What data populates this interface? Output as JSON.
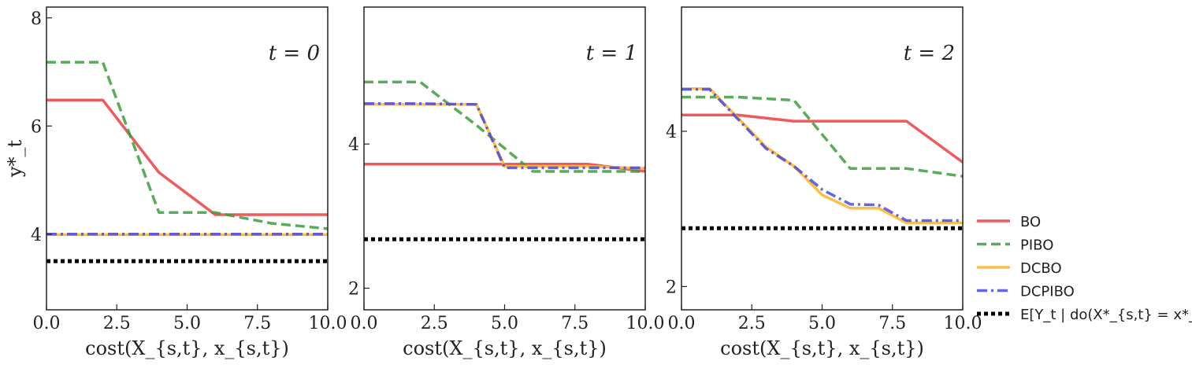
{
  "chart_data": [
    {
      "type": "line",
      "panel_label": "t = 0",
      "xlabel": "cost(X_{s,t}, x_{s,t})",
      "ylabel": "y*_t",
      "xlim": [
        0,
        10
      ],
      "ylim": [
        2.6,
        8.2
      ],
      "yticks": [
        4,
        6,
        8
      ],
      "xticks": [
        0.0,
        2.5,
        5.0,
        7.5,
        10.0
      ],
      "xtick_labels": [
        "0.0",
        "2.5",
        "5.0",
        "7.5",
        "10.0"
      ],
      "series": [
        {
          "name": "BO",
          "x": [
            0,
            2,
            4,
            6,
            8,
            10
          ],
          "values": [
            6.48,
            6.48,
            5.14,
            4.36,
            4.36,
            4.36
          ]
        },
        {
          "name": "PIBO",
          "x": [
            0,
            2,
            4,
            6,
            8,
            10
          ],
          "values": [
            7.18,
            7.18,
            4.4,
            4.4,
            4.2,
            4.1
          ]
        },
        {
          "name": "DCBO",
          "x": [
            0,
            10
          ],
          "values": [
            3.99,
            3.99
          ]
        },
        {
          "name": "DCPIBO",
          "x": [
            0,
            10
          ],
          "values": [
            4.0,
            4.0
          ]
        },
        {
          "name": "E[Y_t | do(X*_{s,t} = x*_{s,t})]",
          "x": [
            0,
            10
          ],
          "values": [
            3.5,
            3.5
          ]
        }
      ]
    },
    {
      "type": "line",
      "panel_label": "t = 1",
      "xlabel": "cost(X_{s,t}, x_{s,t})",
      "ylabel": "",
      "xlim": [
        0,
        10
      ],
      "ylim": [
        1.7,
        5.9
      ],
      "yticks": [
        2,
        4
      ],
      "xticks": [
        0.0,
        2.5,
        5.0,
        7.5,
        10.0
      ],
      "xtick_labels": [
        "0.0",
        "2.5",
        "5.0",
        "7.5",
        "10.0"
      ],
      "series": [
        {
          "name": "BO",
          "x": [
            0,
            2,
            4,
            6,
            8,
            10
          ],
          "values": [
            3.72,
            3.72,
            3.72,
            3.72,
            3.72,
            3.62
          ]
        },
        {
          "name": "PIBO",
          "x": [
            0,
            2,
            4,
            6,
            8,
            10
          ],
          "values": [
            4.86,
            4.86,
            4.26,
            3.62,
            3.62,
            3.62
          ]
        },
        {
          "name": "DCBO",
          "x": [
            0,
            2,
            4,
            5,
            6,
            8,
            10
          ],
          "values": [
            4.55,
            4.55,
            4.55,
            3.69,
            3.69,
            3.69,
            3.66
          ]
        },
        {
          "name": "DCPIBO",
          "x": [
            0,
            2,
            4,
            5,
            6,
            8,
            10
          ],
          "values": [
            4.56,
            4.56,
            4.55,
            3.67,
            3.67,
            3.67,
            3.67
          ]
        },
        {
          "name": "E[Y_t | do(X*_{s,t} = x*_{s,t})]",
          "x": [
            0,
            10
          ],
          "values": [
            2.68,
            2.68
          ]
        }
      ]
    },
    {
      "type": "line",
      "panel_label": "t = 2",
      "xlabel": "cost(X_{s,t}, x_{s,t})",
      "ylabel": "",
      "xlim": [
        0,
        10
      ],
      "ylim": [
        1.7,
        5.6
      ],
      "yticks": [
        2,
        4
      ],
      "xticks": [
        0.0,
        2.5,
        5.0,
        7.5,
        10.0
      ],
      "xtick_labels": [
        "0.0",
        "2.5",
        "5.0",
        "7.5",
        "10.0"
      ],
      "series": [
        {
          "name": "BO",
          "x": [
            0,
            2,
            4,
            6,
            8,
            10
          ],
          "values": [
            4.21,
            4.21,
            4.13,
            4.13,
            4.13,
            3.6
          ]
        },
        {
          "name": "PIBO",
          "x": [
            0,
            2,
            4,
            6,
            8,
            10
          ],
          "values": [
            4.44,
            4.44,
            4.4,
            3.52,
            3.52,
            3.42
          ]
        },
        {
          "name": "DCBO",
          "x": [
            0,
            1,
            3,
            4,
            5,
            6,
            7,
            8,
            10
          ],
          "values": [
            4.55,
            4.55,
            3.8,
            3.55,
            3.18,
            3.01,
            3.01,
            2.82,
            2.82
          ]
        },
        {
          "name": "DCPIBO",
          "x": [
            0,
            1,
            3,
            4,
            5,
            6,
            7,
            8,
            10
          ],
          "values": [
            4.54,
            4.54,
            3.78,
            3.55,
            3.25,
            3.06,
            3.05,
            2.85,
            2.85
          ]
        },
        {
          "name": "E[Y_t | do(X*_{s,t} = x*_{s,t})]",
          "x": [
            0,
            10
          ],
          "values": [
            2.75,
            2.75
          ]
        }
      ]
    }
  ],
  "legend": {
    "placement": "right",
    "entries": [
      {
        "label": "BO",
        "color": "#f0484b",
        "style": "solid"
      },
      {
        "label": "PIBO",
        "color": "#3c9e3c",
        "style": "dashed"
      },
      {
        "label": "DCBO",
        "color": "#fdb933",
        "style": "solid"
      },
      {
        "label": "DCPIBO",
        "color": "#3f3fe4",
        "style": "dashdot"
      },
      {
        "label": "E[Y_t | do(X*_{s,t} = x*_{s,t})]",
        "color": "#000000",
        "style": "dotted"
      }
    ]
  }
}
